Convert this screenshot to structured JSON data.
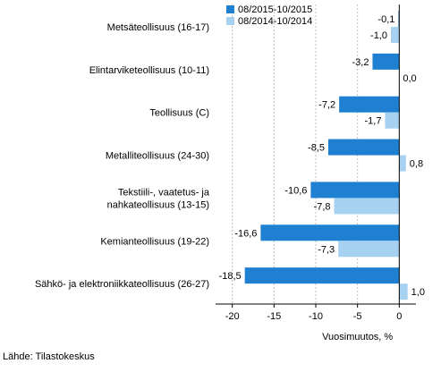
{
  "chart_data": {
    "type": "bar",
    "orientation": "horizontal",
    "categories": [
      [
        "Metsäteollisuus (16-17)"
      ],
      [
        "Elintarviketeollisuus (10-11)"
      ],
      [
        "Teollisuus (C)"
      ],
      [
        "Metalliteollisuus (24-30)"
      ],
      [
        "Tekstiili-, vaatetus- ja",
        "nahkateollisuus (13-15)"
      ],
      [
        "Kemianteollisuus (19-22)"
      ],
      [
        "Sähkö- ja elektroniikkateollisuus (26-27)"
      ]
    ],
    "series": [
      {
        "name": "08/2015-10/2015",
        "color": "#1f7fd0",
        "values": [
          -0.1,
          -3.2,
          -7.2,
          -8.5,
          -10.6,
          -16.6,
          -18.5
        ],
        "labels": [
          "-0,1",
          "-3,2",
          "-7,2",
          "-8,5",
          "-10,6",
          "-16,6",
          "-18,5"
        ]
      },
      {
        "name": "08/2014-10/2014",
        "color": "#a6d1f1",
        "values": [
          -1.0,
          0.0,
          -1.7,
          0.8,
          -7.8,
          -7.3,
          1.0
        ],
        "labels": [
          "-1,0",
          "0,0",
          "-1,7",
          "0,8",
          "-7,8",
          "-7,3",
          "1,0"
        ]
      }
    ],
    "xlabel": "Vuosimuutos, %",
    "xlim": [
      -22,
      2
    ],
    "xticks": [
      -20,
      -15,
      -10,
      -5,
      0
    ],
    "xtick_labels": [
      "-20",
      "-15",
      "-10",
      "-5",
      "0"
    ],
    "grid": "vertical dashed",
    "legend_position": "top"
  },
  "source_text": "Lähde: Tilastokeskus"
}
